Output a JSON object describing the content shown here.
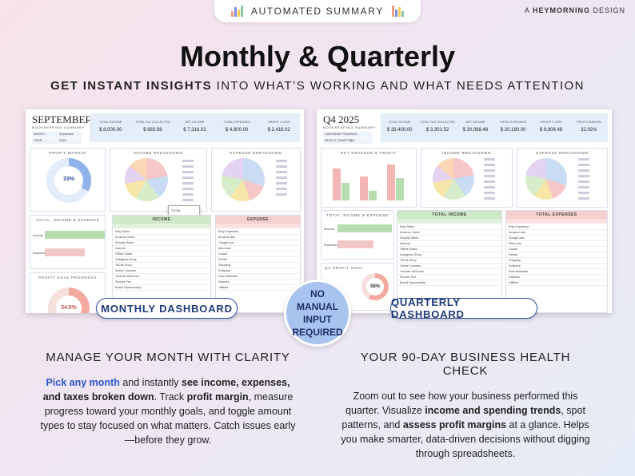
{
  "badge": "AUTOMATED SUMMARY",
  "credit": {
    "prefix": "A",
    "brand": "HEYMORNING",
    "suffix": "DESIGN"
  },
  "title": "Monthly & Quarterly",
  "subtitle": {
    "bold": "GET INSTANT INSIGHTS",
    "rest": "INTO WHAT’S WORKING AND WHAT NEEDS ATTENTION"
  },
  "monthly": {
    "label": "MONTHLY DASHBOARD",
    "heading": "SEPTEMBER",
    "subheading": "BOOKKEEPING SUMMARY",
    "fields": [
      {
        "label": "MONTH",
        "value": "September"
      },
      {
        "label": "YEAR",
        "value": "2025"
      }
    ],
    "kpis": [
      {
        "label": "TOTAL INCOME",
        "value": "$ 8,000.00"
      },
      {
        "label": "TOTAL TAX COLLECTED",
        "value": "$ 683.98"
      },
      {
        "label": "NET INCOME",
        "value": "$ 7,316.02"
      },
      {
        "label": "TOTAL EXPENSES",
        "value": "$ 4,900.00"
      },
      {
        "label": "PROFIT / LOSS",
        "value": "$ 2,416.02"
      }
    ],
    "margin": {
      "title": "PROFIT MARGIN",
      "value": "33%"
    },
    "income_breakdown": "INCOME BREAKDOWN",
    "expense_breakdown": "EXPENSE BREAKDOWN",
    "dropdown": [
      "TOTAL",
      "NET",
      "TAX"
    ],
    "totals": {
      "title": "TOTAL, INCOME & EXPENSE",
      "bars": [
        "Income",
        "Expenses"
      ]
    },
    "goal": {
      "title": "PROFIT GOAL PROGRESS",
      "value": "34.5%"
    },
    "income_table": {
      "title": "INCOME",
      "categories": [
        "Etsy Sales",
        "Amazon Sales",
        "Shopify Sales",
        "Interest",
        "Offline Sales",
        "Instagram Shop",
        "TikTok Shop",
        "Online Courses",
        "Youtube AdSense",
        "Service Fee",
        "Brand Sponsorship"
      ]
    },
    "expense_table": {
      "title": "EXPENSE",
      "categories": [
        "Etsy Expenses",
        "Amazon ads",
        "Google ads",
        "Meta ads",
        "Goods",
        "Rental",
        "Shipping",
        "Software",
        "Raw Materials",
        "Salaries",
        "Utilities"
      ]
    }
  },
  "quarterly": {
    "label": "QUARTERLY DASHBOARD",
    "heading": "Q4 2025",
    "subheading": "BOOKKEEPING SUMMARY",
    "fields": [
      {
        "label": "CALENDAR YEAR",
        "value": "2025"
      },
      {
        "label": "SELECT QUARTER",
        "value": "Q4"
      }
    ],
    "kpis": [
      {
        "label": "TOTAL INCOME",
        "value": "$ 33,400.00"
      },
      {
        "label": "TOTAL TAX COLLECTED",
        "value": "$ 3,301.52"
      },
      {
        "label": "NET INCOME",
        "value": "$ 30,098.48"
      },
      {
        "label": "TOTAL EXPENSES",
        "value": "$ 20,190.00"
      },
      {
        "label": "PROFIT / LOSS",
        "value": "$ 9,908.48"
      },
      {
        "label": "PROFIT MARGIN",
        "value": "32.92%"
      }
    ],
    "revenue": "NET REVENUE & PROFIT",
    "income_breakdown": "INCOME BREAKDOWN",
    "expense_breakdown": "EXPENSE BREAKDOWN",
    "totals": {
      "title": "TOTAL INCOME & EXPENSE",
      "bars": [
        "Income",
        "Expenses"
      ]
    },
    "goal": {
      "title": "Q4 PROFIT GOAL",
      "value": "58%"
    },
    "income_table": {
      "title": "TOTAL INCOME",
      "categories": [
        "Etsy Sales",
        "Amazon Sales",
        "Shopify Sales",
        "Interest",
        "Offline Sales",
        "Instagram Shop",
        "TikTok Shop",
        "Online Courses",
        "Youtube AdSense",
        "Service Fee",
        "Brand Sponsorship"
      ]
    },
    "expense_table": {
      "title": "TOTAL EXPENSES",
      "categories": [
        "Etsy Expenses",
        "Amazon ads",
        "Google ads",
        "Meta ads",
        "Goods",
        "Rental",
        "Shipping",
        "Software",
        "Raw Materials",
        "Salaries",
        "Utilities"
      ]
    }
  },
  "center_badge": "NO MANUAL INPUT REQUIRED",
  "sections": [
    {
      "heading": "MANAGE YOUR MONTH WITH CLARITY",
      "runs": [
        {
          "text": "Pick any month",
          "style": "link"
        },
        {
          "text": " and instantly "
        },
        {
          "text": "see income, expenses, and taxes broken down",
          "style": "bold"
        },
        {
          "text": ". Track "
        },
        {
          "text": "profit margin",
          "style": "bold"
        },
        {
          "text": ", measure progress toward your monthly goals, and toggle amount types to stay focused on what matters. Catch issues early—before they grow."
        }
      ]
    },
    {
      "heading": "YOUR 90-DAY BUSINESS HEALTH CHECK",
      "runs": [
        {
          "text": "Zoom out to see how your business performed this quarter. Visualize "
        },
        {
          "text": "income and spending trends",
          "style": "bold"
        },
        {
          "text": ", spot patterns, and "
        },
        {
          "text": "assess profit margins",
          "style": "bold"
        },
        {
          "text": " at a glance. Helps you make smarter, data-driven decisions without digging through spreadsheets."
        }
      ]
    }
  ]
}
